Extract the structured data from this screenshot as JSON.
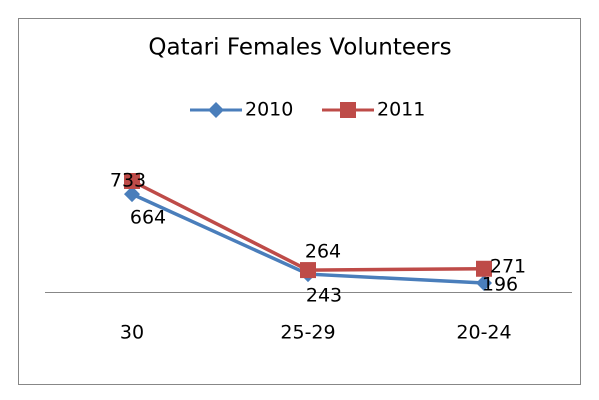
{
  "chart_data": {
    "type": "line",
    "title": "Qatari Females Volunteers",
    "categories": [
      "30",
      "25-29",
      "20-24"
    ],
    "series": [
      {
        "name": "2010",
        "color": "#4a7ebb",
        "marker": "diamond",
        "values": [
          664,
          243,
          196
        ]
      },
      {
        "name": "2011",
        "color": "#be4b48",
        "marker": "square",
        "values": [
          733,
          264,
          271
        ]
      }
    ],
    "legend": "top",
    "grid": false
  }
}
